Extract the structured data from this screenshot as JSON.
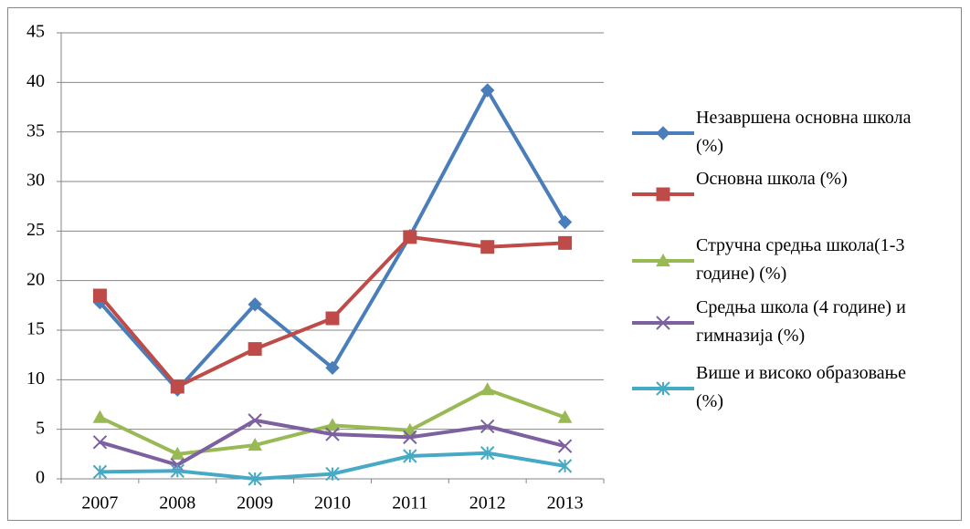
{
  "chart_data": {
    "type": "line",
    "categories": [
      "2007",
      "2008",
      "2009",
      "2010",
      "2011",
      "2012",
      "2013"
    ],
    "series": [
      {
        "name": "Незавршена основна школа (%)",
        "color": "#4a7ebb",
        "marker": "diamond",
        "values": [
          17.8,
          9,
          17.6,
          11.2,
          24.5,
          39.2,
          25.9
        ]
      },
      {
        "name": "Основна школа (%)",
        "color": "#be4b48",
        "marker": "square",
        "values": [
          18.5,
          9.3,
          13.1,
          16.2,
          24.4,
          23.4,
          23.8
        ]
      },
      {
        "name": "Стручна средња школа(1-3 године) (%)",
        "color": "#98b954",
        "marker": "triangle",
        "values": [
          6.2,
          2.5,
          3.4,
          5.4,
          4.9,
          9,
          6.2
        ]
      },
      {
        "name": "Средња школа (4 године) и гимназија (%)",
        "color": "#7d60a0",
        "marker": "x",
        "values": [
          3.7,
          1.4,
          5.9,
          4.5,
          4.2,
          5.3,
          3.3
        ]
      },
      {
        "name": "Више и високо образовање (%)",
        "color": "#46aac5",
        "marker": "asterisk",
        "values": [
          0.7,
          0.8,
          0,
          0.5,
          2.3,
          2.6,
          1.3
        ]
      }
    ],
    "ylim": [
      0,
      45
    ],
    "yticks": [
      0,
      5,
      10,
      15,
      20,
      25,
      30,
      35,
      40,
      45
    ],
    "grid": true,
    "legend": "right"
  }
}
